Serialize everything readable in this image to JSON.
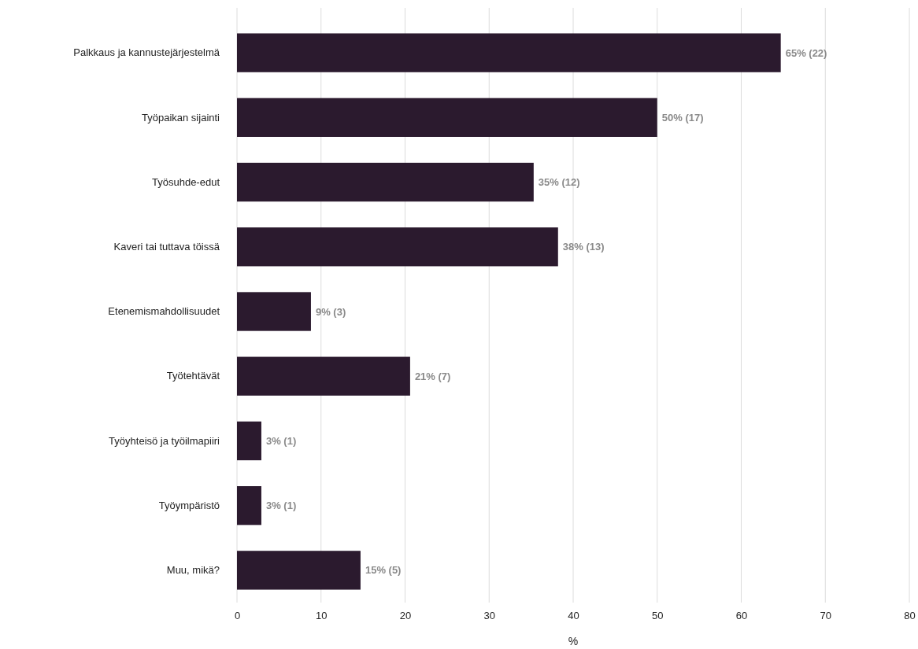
{
  "chart_data": {
    "type": "bar",
    "orientation": "horizontal",
    "xlabel": "%",
    "categories": [
      "Palkkaus ja kannustejärjestelmä",
      "Työpaikan sijainti",
      "Työsuhde-edut",
      "Kaveri tai tuttava töissä",
      "Etenemismahdollisuudet",
      "Työtehtävät",
      "Työyhteisö ja työilmapiiri",
      "Työympäristö",
      "Muu, mikä?"
    ],
    "values": [
      64.7,
      50,
      35.3,
      38.2,
      8.8,
      20.6,
      2.9,
      2.9,
      14.7
    ],
    "value_labels": [
      "65% (22)",
      "50% (17)",
      "35% (12)",
      "38% (13)",
      "9% (3)",
      "21% (7)",
      "3% (1)",
      "3% (1)",
      "15% (5)"
    ],
    "color": "#2b1a2e",
    "xlim": [
      0,
      80
    ],
    "xticks": [
      0,
      10,
      20,
      30,
      40,
      50,
      60,
      70,
      80
    ],
    "grid": "x"
  }
}
